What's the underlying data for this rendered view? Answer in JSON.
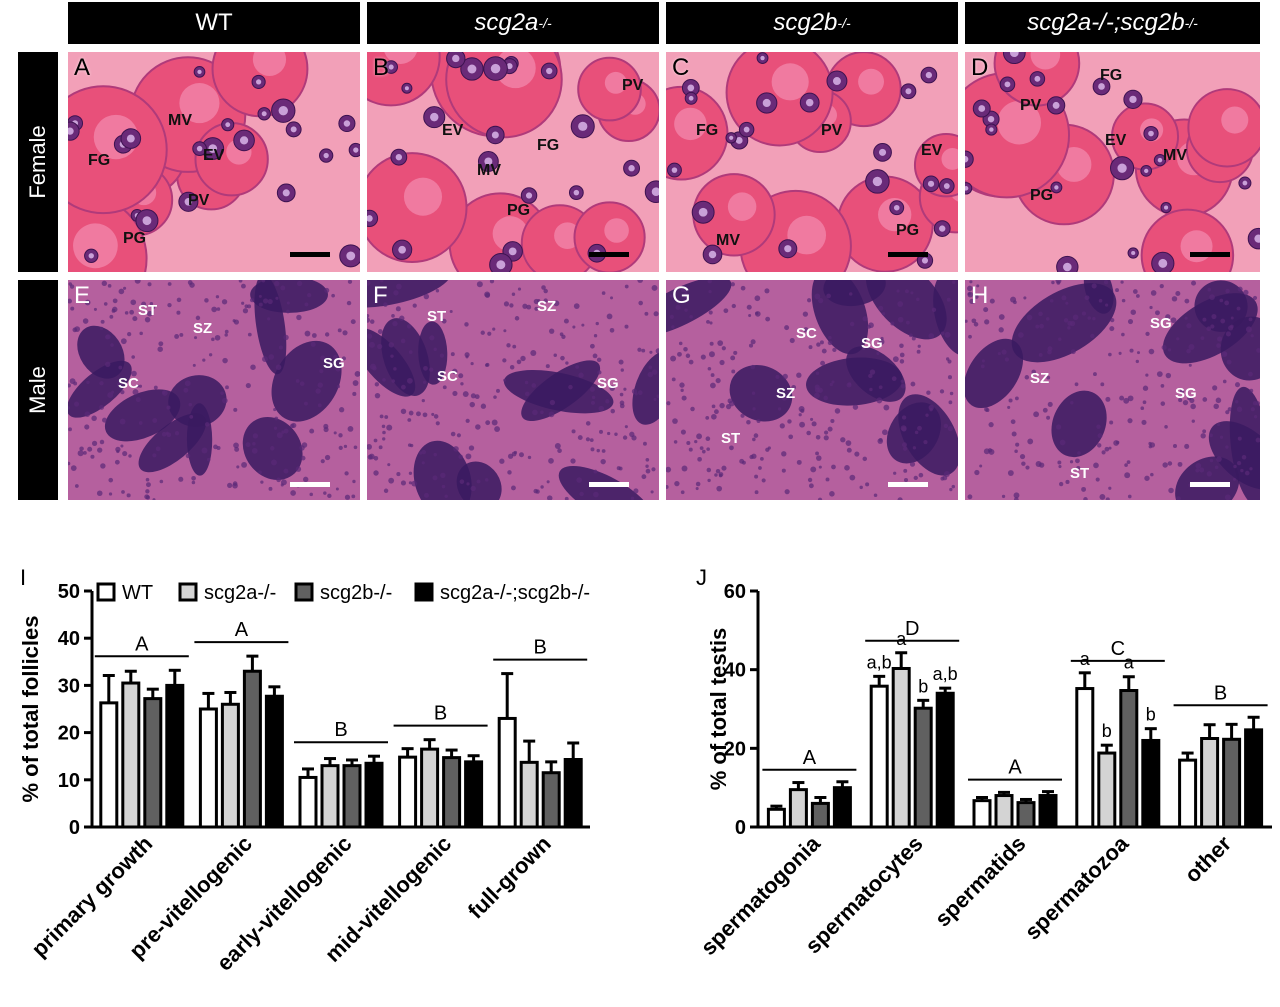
{
  "columns": [
    {
      "main": "WT",
      "sup": ""
    },
    {
      "main": "scg2a",
      "sup": "-/-"
    },
    {
      "main": "scg2b",
      "sup": "-/-"
    },
    {
      "main": "scg2a-/-;scg2b",
      "sup": "-/-"
    }
  ],
  "col_colors": {
    "header_bg": "#000000",
    "female_tissue": "#e8507a",
    "male_tissue": "#a04b9a"
  },
  "rows": [
    "Female",
    "Male"
  ],
  "female_panels": [
    {
      "letter": "A",
      "labels": [
        "MV",
        "FG",
        "EV",
        "PV",
        "PG"
      ]
    },
    {
      "letter": "B",
      "labels": [
        "PV",
        "EV",
        "FG",
        "MV",
        "PG"
      ]
    },
    {
      "letter": "C",
      "labels": [
        "FG",
        "PV",
        "EV",
        "MV",
        "PG"
      ]
    },
    {
      "letter": "D",
      "labels": [
        "FG",
        "PV",
        "EV",
        "MV",
        "PG"
      ]
    }
  ],
  "male_panels": [
    {
      "letter": "E",
      "labels": [
        "ST",
        "SZ",
        "SC",
        "SG"
      ]
    },
    {
      "letter": "F",
      "labels": [
        "ST",
        "SZ",
        "SC",
        "SG"
      ]
    },
    {
      "letter": "G",
      "labels": [
        "SC",
        "SG",
        "SZ",
        "ST"
      ]
    },
    {
      "letter": "H",
      "labels": [
        "SG",
        "SZ",
        "SG",
        "ST"
      ]
    }
  ],
  "chart_data": [
    {
      "panel": "I",
      "type": "bar",
      "ylabel": "% of total follicles",
      "ylim": [
        0,
        50
      ],
      "yticks": [
        0,
        10,
        20,
        30,
        40,
        50
      ],
      "categories": [
        "primary growth",
        "pre-vitellogenic",
        "early-vitellogenic",
        "mid-vitellogenic",
        "full-grown"
      ],
      "legend": [
        "WT",
        "scg2a-/-",
        "scg2b-/-",
        "scg2a-/-;scg2b-/-"
      ],
      "series": [
        {
          "name": "WT",
          "color": "#ffffff",
          "values": [
            26.3,
            25.0,
            10.5,
            14.8,
            23.0
          ],
          "err": [
            5.8,
            3.3,
            1.8,
            1.8,
            9.5
          ]
        },
        {
          "name": "scg2a-/-",
          "color": "#d4d4d4",
          "values": [
            30.5,
            26.0,
            13.0,
            16.5,
            13.7
          ],
          "err": [
            2.5,
            2.5,
            1.5,
            2.0,
            4.5
          ]
        },
        {
          "name": "scg2b-/-",
          "color": "#606060",
          "values": [
            27.2,
            33.0,
            13.0,
            14.7,
            11.5
          ],
          "err": [
            2.0,
            3.2,
            1.2,
            1.6,
            2.3
          ]
        },
        {
          "name": "scg2a-/-;scg2b-/-",
          "color": "#000000",
          "values": [
            30.0,
            27.7,
            13.5,
            13.8,
            14.3
          ],
          "err": [
            3.2,
            2.0,
            1.5,
            1.3,
            3.5
          ]
        }
      ],
      "group_letters": [
        "A",
        "A",
        "B",
        "B",
        "B"
      ]
    },
    {
      "panel": "J",
      "type": "bar",
      "ylabel": "% of total testis",
      "ylim": [
        0,
        60
      ],
      "yticks": [
        0,
        20,
        40,
        60
      ],
      "categories": [
        "spermatogonia",
        "spermatocytes",
        "spermatids",
        "spermatozoa",
        "other"
      ],
      "series": [
        {
          "name": "WT",
          "color": "#ffffff",
          "values": [
            4.5,
            35.8,
            6.7,
            35.2,
            17.0
          ],
          "err": [
            0.8,
            2.5,
            0.8,
            4.0,
            1.8
          ]
        },
        {
          "name": "scg2a-/-",
          "color": "#d4d4d4",
          "values": [
            9.5,
            40.3,
            8.0,
            18.8,
            22.5
          ],
          "err": [
            1.8,
            4.0,
            0.8,
            2.0,
            3.5
          ]
        },
        {
          "name": "scg2b-/-",
          "color": "#606060",
          "values": [
            6.0,
            30.2,
            6.2,
            34.7,
            22.3
          ],
          "err": [
            1.5,
            2.0,
            0.8,
            3.5,
            3.8
          ]
        },
        {
          "name": "scg2a-/-;scg2b-/-",
          "color": "#000000",
          "values": [
            10.0,
            34.0,
            8.0,
            22.0,
            24.7
          ],
          "err": [
            1.5,
            1.3,
            1.0,
            3.0,
            3.2
          ]
        }
      ],
      "group_letters": [
        "A",
        "D",
        "A",
        "C",
        "B"
      ],
      "bar_letters": [
        {
          "category": 1,
          "labels": [
            "a,b",
            "a",
            "b",
            "a,b"
          ]
        },
        {
          "category": 3,
          "labels": [
            "a",
            "b",
            "a",
            "b"
          ]
        }
      ]
    }
  ]
}
